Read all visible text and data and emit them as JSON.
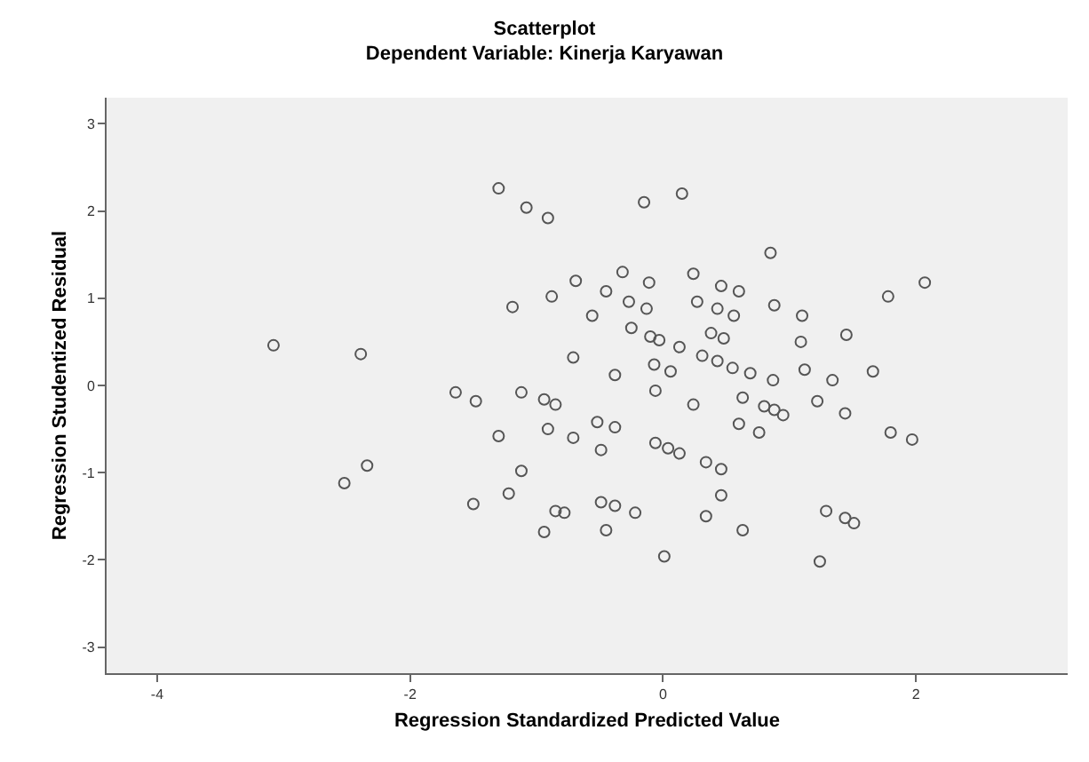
{
  "chart_data": {
    "type": "scatter",
    "title": "Scatterplot",
    "subtitle": "Dependent Variable: Kinerja Karyawan",
    "xlabel": "Regression Standardized Predicted Value",
    "ylabel": "Regression Studentized Residual",
    "marker": "circle",
    "grid": false,
    "xlim": [
      -4.4,
      3.2
    ],
    "ylim": [
      -3.3,
      3.3
    ],
    "xticks": [
      -4,
      -2,
      0,
      2
    ],
    "yticks": [
      -3,
      -2,
      -1,
      0,
      1,
      2,
      3
    ],
    "series": [
      {
        "color": "#555555",
        "x": [
          -1.3,
          -1.08,
          -0.91,
          -0.69,
          -0.88,
          -1.19,
          -0.56,
          -0.71,
          -3.08,
          -2.39,
          -0.15,
          0.15,
          0.85,
          -0.32,
          -0.11,
          0.24,
          0.46,
          0.6,
          -0.45,
          -0.27,
          -0.13,
          0.27,
          0.43,
          0.56,
          0.88,
          1.1,
          1.78,
          2.07,
          -0.25,
          -0.1,
          -0.03,
          0.13,
          0.38,
          0.48,
          1.09,
          1.45,
          0.31,
          -0.07,
          0.06,
          0.43,
          0.55,
          0.69,
          1.12,
          1.66,
          -0.38,
          1.34,
          0.87,
          -0.06,
          0.24,
          0.63,
          0.8,
          0.88,
          0.95,
          1.22,
          1.44,
          -0.52,
          -0.38,
          0.6,
          0.76,
          1.8,
          1.97,
          -0.49,
          -0.06,
          0.04,
          0.13,
          0.34,
          0.46,
          0.46,
          -0.49,
          -0.38,
          -0.22,
          0.34,
          -0.45,
          0.63,
          1.29,
          1.44,
          1.51,
          0.01,
          1.24,
          -1.64,
          -1.48,
          -1.12,
          -0.94,
          -0.85,
          -1.3,
          -0.91,
          -0.71,
          -1.12,
          -1.22,
          -1.5,
          -0.85,
          -0.78,
          -0.94,
          -2.34,
          -2.52
        ],
        "values": [
          2.26,
          2.04,
          1.92,
          1.2,
          1.02,
          0.9,
          0.8,
          0.32,
          0.46,
          0.36,
          2.1,
          2.2,
          1.52,
          1.3,
          1.18,
          1.28,
          1.14,
          1.08,
          1.08,
          0.96,
          0.88,
          0.96,
          0.88,
          0.8,
          0.92,
          0.8,
          1.02,
          1.18,
          0.66,
          0.56,
          0.52,
          0.44,
          0.6,
          0.54,
          0.5,
          0.58,
          0.34,
          0.24,
          0.16,
          0.28,
          0.2,
          0.14,
          0.18,
          0.16,
          0.12,
          0.06,
          0.06,
          -0.06,
          -0.22,
          -0.14,
          -0.24,
          -0.28,
          -0.34,
          -0.18,
          -0.32,
          -0.42,
          -0.48,
          -0.44,
          -0.54,
          -0.54,
          -0.62,
          -0.74,
          -0.66,
          -0.72,
          -0.78,
          -0.88,
          -0.96,
          -1.26,
          -1.34,
          -1.38,
          -1.46,
          -1.5,
          -1.66,
          -1.66,
          -1.44,
          -1.52,
          -1.58,
          -1.96,
          -2.02,
          -0.08,
          -0.18,
          -0.08,
          -0.16,
          -0.22,
          -0.58,
          -0.5,
          -0.6,
          -0.98,
          -1.24,
          -1.36,
          -1.44,
          -1.46,
          -1.68,
          -0.92,
          -1.12
        ]
      }
    ]
  }
}
